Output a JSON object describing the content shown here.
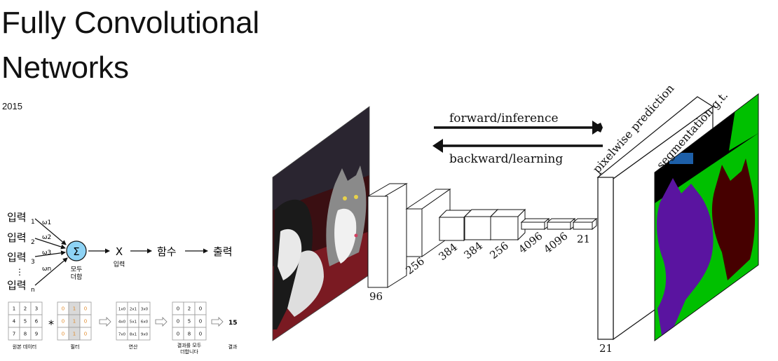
{
  "title_line1": "Fully Convolutional",
  "title_line2": "Networks",
  "year": "2015",
  "fcn": {
    "forward_label": "forward/inference",
    "backward_label": "backward/learning",
    "prediction_label": "pixelwise prediction",
    "gt_label": "segmentation g.t.",
    "layer_labels": [
      "96",
      "256",
      "384",
      "384",
      "256",
      "4096",
      "4096",
      "21"
    ],
    "output_label": "21",
    "colors": {
      "background": "#000000",
      "green": "#00c000",
      "purple": "#5a14a0",
      "maroon": "#460000",
      "blue_marker": "#1d5fa8"
    }
  },
  "perceptron": {
    "inputs": [
      "입력",
      "입력",
      "입력",
      "입력"
    ],
    "subscripts": [
      "1",
      "2",
      "3",
      "n"
    ],
    "weights": [
      "ω1",
      "ω2",
      "ω3",
      "ωn"
    ],
    "dots": "⋮",
    "sigma": "Σ",
    "sum_label_1": "모두",
    "sum_label_2": "더함",
    "x_label": "X",
    "x_sub": "입력",
    "function_label": "함수",
    "output_label": "출력",
    "node_color": "#8ed3f5"
  },
  "convolution": {
    "input_grid": [
      "1",
      "2",
      "3",
      "4",
      "5",
      "6",
      "7",
      "8",
      "9"
    ],
    "star": "*",
    "filter_grid": [
      "0",
      "1",
      "0",
      "0",
      "1",
      "0",
      "0",
      "1",
      "0"
    ],
    "op_grid": [
      "1x0",
      "2x1",
      "3x0",
      "4x0",
      "5x1",
      "6x0",
      "7x0",
      "8x1",
      "9x0"
    ],
    "product_grid": [
      "0",
      "2",
      "0",
      "0",
      "5",
      "0",
      "0",
      "8",
      "0"
    ],
    "result": "15",
    "captions": [
      "원본 데이터",
      "필터",
      "연산",
      "결과를 모두",
      "더합니다",
      "결과"
    ],
    "filter_highlight": "#d9d9d9",
    "accent": "#e08a2b"
  }
}
